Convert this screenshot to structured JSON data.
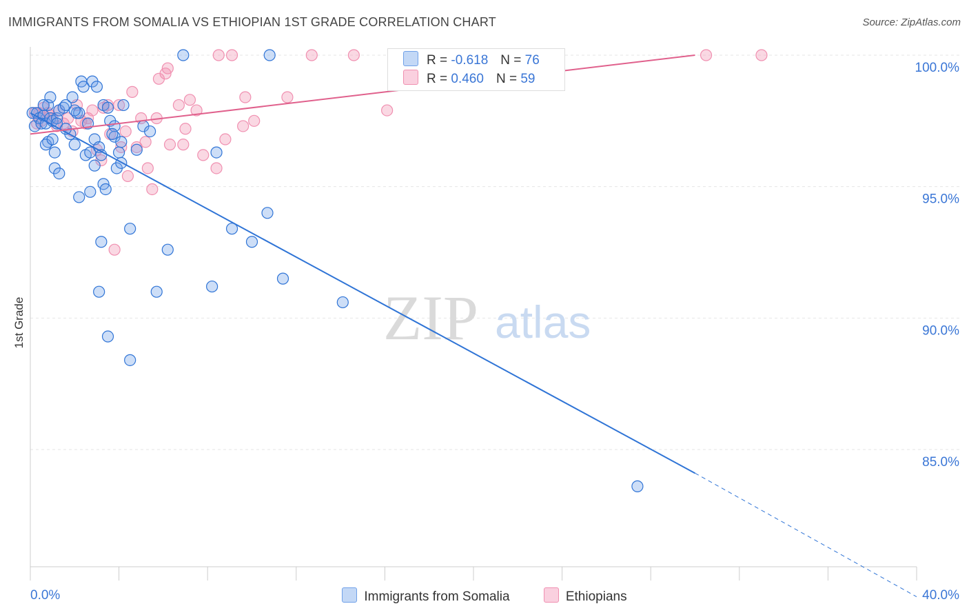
{
  "title": "IMMIGRANTS FROM SOMALIA VS ETHIOPIAN 1ST GRADE CORRELATION CHART",
  "source": "Source: ZipAtlas.com",
  "watermark": {
    "zip": "ZIP",
    "atlas": "atlas"
  },
  "legend_stats": [
    {
      "r_label": "R =",
      "r_value": "-0.618",
      "n_label": "N =",
      "n_value": "76"
    },
    {
      "r_label": "R =",
      "r_value": "0.460",
      "n_label": "N =",
      "n_value": "59"
    }
  ],
  "chart_data": {
    "type": "scatter",
    "title": "IMMIGRANTS FROM SOMALIA VS ETHIOPIAN 1ST GRADE CORRELATION CHART",
    "xlabel": "",
    "ylabel": "1st Grade",
    "xlim": [
      0,
      40
    ],
    "ylim": [
      80.5,
      100.5
    ],
    "x_tick_labels": [
      "0.0%",
      "40.0%"
    ],
    "y_ticks": [
      85,
      90,
      95,
      100
    ],
    "y_tick_labels": [
      "85.0%",
      "90.0%",
      "95.0%",
      "100.0%"
    ],
    "grid": true,
    "legend_position": "bottom",
    "colors": {
      "somalia": "#6fa0e8",
      "ethiopians": "#f08fb0",
      "somalia_line": "#2f74d6",
      "ethiopians_line": "#e0608c",
      "tick_label": "#3a76d6"
    },
    "series": [
      {
        "name": "Immigrants from Somalia",
        "r": -0.618,
        "n": 76,
        "trend": {
          "x": [
            0.0,
            30.0,
            40.0
          ],
          "y": [
            97.8,
            84.1,
            79.4
          ],
          "dashed_from_x": 30.0
        },
        "points": [
          [
            0.1,
            97.8
          ],
          [
            0.2,
            97.3
          ],
          [
            0.3,
            97.8
          ],
          [
            0.4,
            97.6
          ],
          [
            0.5,
            97.4
          ],
          [
            0.6,
            97.7
          ],
          [
            0.7,
            97.4
          ],
          [
            0.8,
            98.1
          ],
          [
            0.8,
            96.7
          ],
          [
            0.9,
            98.4
          ],
          [
            0.9,
            97.6
          ],
          [
            0.7,
            96.6
          ],
          [
            1.0,
            97.5
          ],
          [
            1.1,
            96.3
          ],
          [
            1.1,
            95.7
          ],
          [
            1.2,
            97.6
          ],
          [
            1.2,
            97.4
          ],
          [
            1.3,
            95.5
          ],
          [
            1.3,
            97.9
          ],
          [
            1.5,
            98.0
          ],
          [
            1.6,
            98.1
          ],
          [
            1.8,
            97.0
          ],
          [
            1.9,
            98.4
          ],
          [
            2.0,
            96.6
          ],
          [
            2.1,
            97.8
          ],
          [
            2.2,
            97.8
          ],
          [
            2.2,
            94.6
          ],
          [
            2.3,
            99.0
          ],
          [
            2.4,
            98.8
          ],
          [
            2.5,
            96.2
          ],
          [
            2.7,
            96.3
          ],
          [
            2.7,
            94.8
          ],
          [
            2.8,
            99.0
          ],
          [
            2.9,
            95.8
          ],
          [
            2.9,
            96.8
          ],
          [
            3.0,
            98.8
          ],
          [
            3.1,
            96.5
          ],
          [
            3.2,
            96.2
          ],
          [
            3.1,
            91.0
          ],
          [
            3.2,
            92.9
          ],
          [
            3.3,
            95.1
          ],
          [
            3.3,
            98.1
          ],
          [
            3.4,
            94.9
          ],
          [
            3.5,
            98.0
          ],
          [
            3.5,
            89.3
          ],
          [
            3.6,
            97.5
          ],
          [
            3.8,
            97.3
          ],
          [
            3.8,
            96.9
          ],
          [
            3.9,
            95.7
          ],
          [
            4.0,
            96.3
          ],
          [
            4.1,
            95.9
          ],
          [
            4.1,
            96.7
          ],
          [
            4.2,
            98.1
          ],
          [
            4.5,
            93.4
          ],
          [
            4.5,
            88.4
          ],
          [
            4.8,
            96.4
          ],
          [
            5.1,
            97.3
          ],
          [
            5.4,
            97.1
          ],
          [
            5.7,
            91.0
          ],
          [
            6.2,
            92.6
          ],
          [
            6.9,
            100.0
          ],
          [
            8.2,
            91.2
          ],
          [
            8.4,
            96.3
          ],
          [
            9.1,
            93.4
          ],
          [
            10.0,
            92.9
          ],
          [
            10.7,
            94.0
          ],
          [
            10.8,
            100.0
          ],
          [
            11.4,
            91.5
          ],
          [
            14.1,
            90.6
          ],
          [
            27.4,
            83.6
          ],
          [
            3.7,
            97.0
          ],
          [
            2.0,
            97.9
          ],
          [
            1.0,
            96.8
          ],
          [
            0.6,
            98.1
          ],
          [
            2.6,
            97.4
          ],
          [
            1.6,
            97.2
          ]
        ]
      },
      {
        "name": "Ethiopians",
        "r": 0.46,
        "n": 59,
        "trend": {
          "x": [
            0.0,
            30.0
          ],
          "y": [
            97.0,
            100.0
          ]
        },
        "points": [
          [
            0.2,
            97.8
          ],
          [
            0.3,
            97.4
          ],
          [
            0.4,
            97.8
          ],
          [
            0.5,
            97.5
          ],
          [
            0.6,
            98.0
          ],
          [
            0.8,
            97.8
          ],
          [
            0.9,
            97.7
          ],
          [
            1.0,
            97.6
          ],
          [
            1.2,
            97.3
          ],
          [
            1.3,
            97.9
          ],
          [
            1.5,
            97.4
          ],
          [
            1.7,
            97.6
          ],
          [
            1.9,
            97.1
          ],
          [
            2.1,
            98.1
          ],
          [
            2.3,
            97.5
          ],
          [
            2.5,
            97.4
          ],
          [
            2.6,
            97.6
          ],
          [
            2.8,
            97.9
          ],
          [
            3.0,
            96.4
          ],
          [
            3.2,
            96.0
          ],
          [
            3.3,
            98.0
          ],
          [
            3.5,
            98.1
          ],
          [
            3.6,
            97.0
          ],
          [
            3.8,
            92.6
          ],
          [
            4.0,
            98.1
          ],
          [
            4.1,
            96.5
          ],
          [
            4.3,
            97.1
          ],
          [
            4.4,
            95.4
          ],
          [
            4.6,
            98.6
          ],
          [
            4.8,
            96.5
          ],
          [
            5.0,
            97.6
          ],
          [
            5.2,
            96.7
          ],
          [
            5.3,
            95.7
          ],
          [
            5.5,
            94.9
          ],
          [
            5.7,
            97.6
          ],
          [
            5.8,
            99.1
          ],
          [
            6.1,
            99.3
          ],
          [
            6.2,
            99.5
          ],
          [
            6.3,
            96.6
          ],
          [
            6.7,
            98.1
          ],
          [
            6.9,
            96.6
          ],
          [
            7.0,
            97.2
          ],
          [
            7.2,
            98.3
          ],
          [
            7.5,
            97.9
          ],
          [
            7.8,
            96.2
          ],
          [
            8.4,
            95.7
          ],
          [
            8.5,
            100.0
          ],
          [
            8.8,
            96.8
          ],
          [
            9.1,
            100.0
          ],
          [
            9.6,
            97.3
          ],
          [
            9.7,
            98.4
          ],
          [
            10.1,
            97.5
          ],
          [
            11.6,
            98.4
          ],
          [
            12.7,
            100.0
          ],
          [
            14.6,
            100.0
          ],
          [
            16.1,
            97.9
          ],
          [
            20.8,
            100.0
          ],
          [
            30.5,
            100.0
          ],
          [
            33.0,
            100.0
          ]
        ]
      }
    ]
  }
}
